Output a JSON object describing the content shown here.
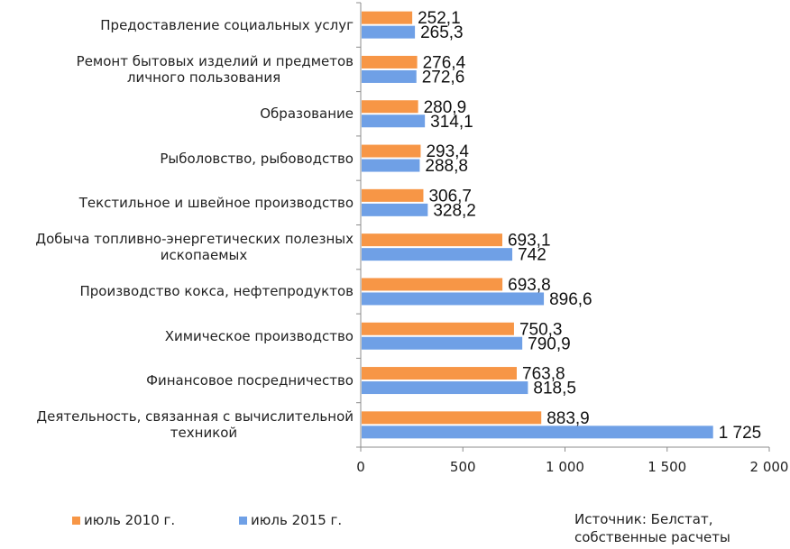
{
  "chart_data": {
    "type": "bar",
    "orientation": "horizontal",
    "categories": [
      "Предоставление социальных услуг",
      "Ремонт бытовых изделий и предметов личного пользования",
      "Образование",
      "Рыболовство, рыбоводство",
      "Текстильное и швейное производство",
      "Добыча топливно-энергетических полезных ископаемых",
      "Производство кокса, нефтепродуктов",
      "Химическое производство",
      "Финансовое посредничество",
      "Деятельность, связанная с вычислительной техникой"
    ],
    "category_lines": [
      [
        "Предоставление социальных услуг"
      ],
      [
        "Ремонт бытовых изделий и предметов",
        "личного пользования"
      ],
      [
        "Образование"
      ],
      [
        "Рыболовство, рыбоводство"
      ],
      [
        "Текстильное и швейное производство"
      ],
      [
        "Добыча топливно-энергетических полезных",
        "ископаемых"
      ],
      [
        "Производство кокса, нефтепродуктов"
      ],
      [
        "Химическое производство"
      ],
      [
        "Финансовое посредничество"
      ],
      [
        "Деятельность, связанная с вычислительной",
        "техникой"
      ]
    ],
    "series": [
      {
        "name": "июль 2010 г.",
        "color": "#F79646",
        "values": [
          252.1,
          276.4,
          280.9,
          293.4,
          306.7,
          693.1,
          693.8,
          750.3,
          763.8,
          883.9
        ],
        "labels": [
          "252,1",
          "276,4",
          "280,9",
          "293,4",
          "306,7",
          "693,1",
          "693,8",
          "750,3",
          "763,8",
          "883,9"
        ]
      },
      {
        "name": "июль 2015 г.",
        "color": "#6FA0E6",
        "values": [
          265.3,
          272.6,
          314.1,
          288.8,
          328.2,
          742,
          896.6,
          790.9,
          818.5,
          1725
        ],
        "labels": [
          "265,3",
          "272,6",
          "314,1",
          "288,8",
          "328,2",
          "742",
          "896,6",
          "790,9",
          "818,5",
          "1 725"
        ]
      }
    ],
    "xlim": [
      0,
      2000
    ],
    "xticks": [
      0,
      500,
      1000,
      1500,
      2000
    ],
    "xtick_labels": [
      "0",
      "500",
      "1 000",
      "1 500",
      "2 000"
    ],
    "grid": false,
    "legend_position": "bottom-left"
  },
  "source_lines": [
    "Источник: Белстат,",
    "собственные расчеты"
  ]
}
